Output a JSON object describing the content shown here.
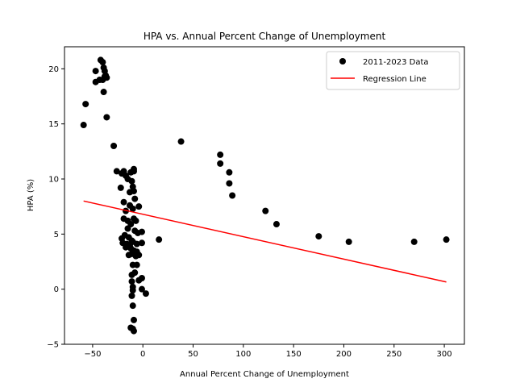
{
  "chart_data": {
    "type": "scatter",
    "title": "HPA vs. Annual Percent Change of Unemployment",
    "xlabel": "Annual Percent Change of Unemployment",
    "ylabel": "HPA (%)",
    "xlim": [
      -78,
      320
    ],
    "ylim": [
      -5,
      22
    ],
    "xticks": [
      -50,
      0,
      50,
      100,
      150,
      200,
      250,
      300
    ],
    "yticks": [
      -5,
      0,
      5,
      10,
      15,
      20
    ],
    "grid": false,
    "legend_position": "upper right",
    "series": [
      {
        "name": "2011-2023 Data",
        "kind": "scatter",
        "color": "#000000",
        "points": [
          [
            -59,
            14.9
          ],
          [
            -57,
            16.8
          ],
          [
            -47,
            19.8
          ],
          [
            -47,
            18.8
          ],
          [
            -42,
            20.8
          ],
          [
            -40,
            20.6
          ],
          [
            -39,
            20.1
          ],
          [
            -38,
            19.3
          ],
          [
            -38,
            19.8
          ],
          [
            -37,
            19.4
          ],
          [
            -36,
            19.2
          ],
          [
            -40,
            19.0
          ],
          [
            -43,
            19.0
          ],
          [
            -39,
            17.9
          ],
          [
            -36,
            15.6
          ],
          [
            -29,
            13.0
          ],
          [
            -26,
            10.7
          ],
          [
            -21,
            10.5
          ],
          [
            -19,
            10.7
          ],
          [
            -17,
            10.3
          ],
          [
            -15,
            10.0
          ],
          [
            -12,
            10.6
          ],
          [
            -9,
            10.9
          ],
          [
            -9,
            10.7
          ],
          [
            -11,
            9.8
          ],
          [
            -22,
            9.2
          ],
          [
            -10,
            9.3
          ],
          [
            -13,
            8.8
          ],
          [
            -9,
            8.9
          ],
          [
            -8,
            8.2
          ],
          [
            -4,
            7.5
          ],
          [
            -19,
            7.9
          ],
          [
            -13,
            7.6
          ],
          [
            -17,
            7.1
          ],
          [
            -10,
            7.3
          ],
          [
            -19,
            6.4
          ],
          [
            -15,
            6.2
          ],
          [
            -9,
            6.4
          ],
          [
            -7,
            6.2
          ],
          [
            -12,
            5.9
          ],
          [
            -15,
            5.5
          ],
          [
            -8,
            5.3
          ],
          [
            -5,
            5.1
          ],
          [
            -1,
            5.2
          ],
          [
            -21,
            4.6
          ],
          [
            -18,
            4.9
          ],
          [
            -14,
            4.7
          ],
          [
            -11,
            4.4
          ],
          [
            -16,
            4.1
          ],
          [
            -13,
            4.0
          ],
          [
            -10,
            4.3
          ],
          [
            -6,
            4.1
          ],
          [
            -1,
            4.2
          ],
          [
            -20,
            4.2
          ],
          [
            -17,
            3.8
          ],
          [
            -12,
            3.7
          ],
          [
            -9,
            3.5
          ],
          [
            -6,
            3.4
          ],
          [
            -14,
            3.1
          ],
          [
            -11,
            3.2
          ],
          [
            -7,
            3.0
          ],
          [
            -4,
            3.1
          ],
          [
            -10,
            2.2
          ],
          [
            -6,
            2.2
          ],
          [
            -11,
            1.3
          ],
          [
            -8,
            1.5
          ],
          [
            -11,
            0.7
          ],
          [
            -4,
            0.8
          ],
          [
            -1,
            1.0
          ],
          [
            -10,
            0.2
          ],
          [
            -10,
            -0.1
          ],
          [
            -1,
            0.0
          ],
          [
            3,
            -0.4
          ],
          [
            -11,
            -0.6
          ],
          [
            -10,
            -1.5
          ],
          [
            -9,
            -2.8
          ],
          [
            -12,
            -3.5
          ],
          [
            -10,
            -3.6
          ],
          [
            -9,
            -3.8
          ],
          [
            16,
            4.5
          ],
          [
            38,
            13.4
          ],
          [
            77,
            12.2
          ],
          [
            77,
            11.4
          ],
          [
            86,
            10.6
          ],
          [
            86,
            9.6
          ],
          [
            89,
            8.5
          ],
          [
            122,
            7.1
          ],
          [
            133,
            5.9
          ],
          [
            175,
            4.8
          ],
          [
            205,
            4.3
          ],
          [
            270,
            4.3
          ],
          [
            302,
            4.5
          ]
        ]
      },
      {
        "name": "Regression Line",
        "kind": "line",
        "color": "#ff0000",
        "points": [
          [
            -59,
            8.0
          ],
          [
            302,
            0.65
          ]
        ]
      }
    ]
  }
}
